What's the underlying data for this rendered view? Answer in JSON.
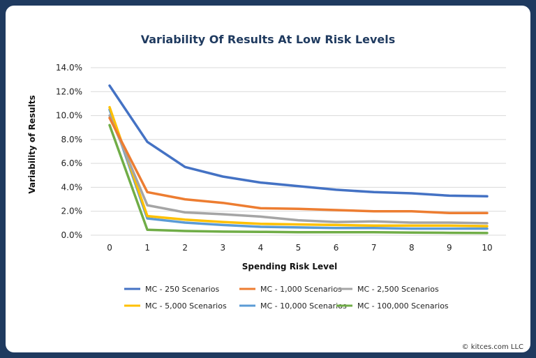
{
  "chart_data": {
    "type": "line",
    "title": "Variability Of Results At Low Risk Levels",
    "xlabel": "Spending Risk Level",
    "ylabel": "Variability of Results",
    "x": [
      0,
      1,
      2,
      3,
      4,
      5,
      6,
      7,
      8,
      9,
      10
    ],
    "x_tick_labels": [
      "0",
      "1",
      "2",
      "3",
      "4",
      "5",
      "6",
      "7",
      "8",
      "9",
      "10"
    ],
    "ylim": [
      0,
      14
    ],
    "y_ticks": [
      0,
      2,
      4,
      6,
      8,
      10,
      12,
      14
    ],
    "y_tick_labels": [
      "0.0%",
      "2.0%",
      "4.0%",
      "6.0%",
      "8.0%",
      "10.0%",
      "12.0%",
      "14.0%"
    ],
    "grid": "horizontal",
    "legend_position": "bottom",
    "series": [
      {
        "name": "MC - 250 Scenarios",
        "color": "#4472c4",
        "values": [
          12.5,
          7.8,
          5.7,
          4.9,
          4.4,
          4.1,
          3.8,
          3.6,
          3.5,
          3.3,
          3.25
        ]
      },
      {
        "name": "MC - 1,000 Scenarios",
        "color": "#ed7d31",
        "values": [
          9.8,
          3.6,
          3.0,
          2.7,
          2.25,
          2.2,
          2.1,
          2.0,
          2.0,
          1.85,
          1.85
        ]
      },
      {
        "name": "MC - 2,500 Scenarios",
        "color": "#a5a5a5",
        "values": [
          10.0,
          2.5,
          1.9,
          1.75,
          1.55,
          1.25,
          1.1,
          1.15,
          1.05,
          1.05,
          1.0
        ]
      },
      {
        "name": "MC - 5,000 Scenarios",
        "color": "#ffc000",
        "values": [
          10.7,
          1.6,
          1.3,
          1.1,
          0.95,
          0.9,
          0.85,
          0.8,
          0.8,
          0.8,
          0.75
        ]
      },
      {
        "name": "MC - 10,000 Scenarios",
        "color": "#5b9bd5",
        "values": [
          10.5,
          1.4,
          1.05,
          0.85,
          0.7,
          0.65,
          0.6,
          0.6,
          0.55,
          0.55,
          0.55
        ]
      },
      {
        "name": "MC - 100,000 Scenarios",
        "color": "#70ad47",
        "values": [
          9.2,
          0.45,
          0.35,
          0.3,
          0.28,
          0.25,
          0.25,
          0.25,
          0.22,
          0.2,
          0.18
        ]
      }
    ]
  },
  "copyright": "© kitces.com LLC"
}
